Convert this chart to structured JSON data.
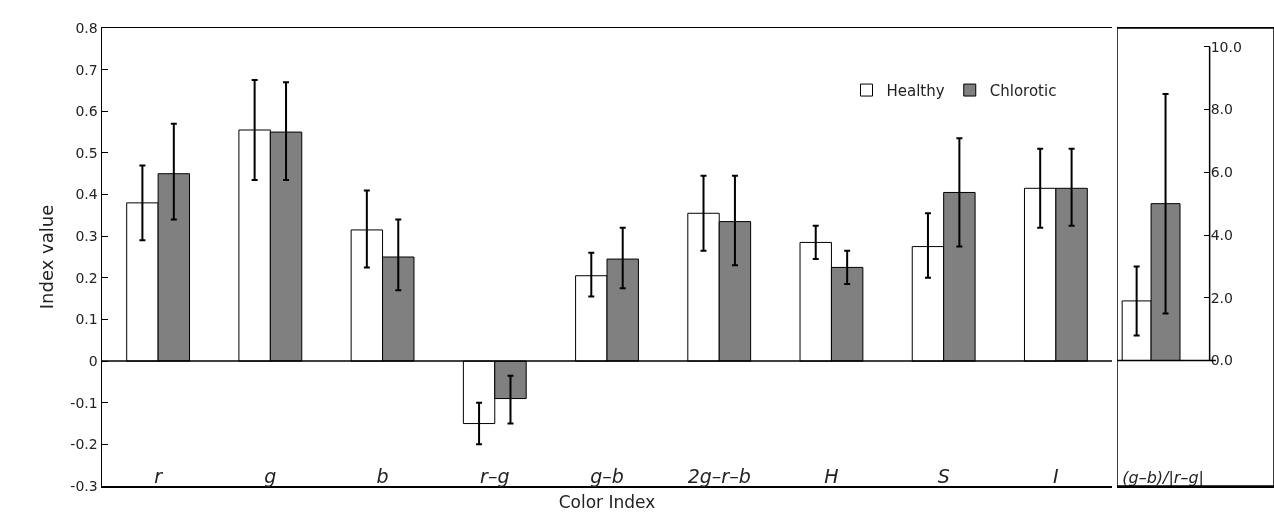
{
  "chart_data": [
    {
      "type": "bar",
      "xlabel": "Color Index",
      "ylabel": "Index value",
      "categories": [
        "r",
        "g",
        "b",
        "r–g",
        "g–b",
        "2g–r–b",
        "H",
        "S",
        "I"
      ],
      "series": [
        {
          "name": "Healthy",
          "color": "#ffffff",
          "values": [
            0.38,
            0.555,
            0.315,
            -0.15,
            0.205,
            0.355,
            0.285,
            0.275,
            0.415
          ],
          "errors": [
            [
              0.29,
              0.47
            ],
            [
              0.435,
              0.675
            ],
            [
              0.225,
              0.41
            ],
            [
              -0.2,
              -0.1
            ],
            [
              0.155,
              0.26
            ],
            [
              0.265,
              0.445
            ],
            [
              0.245,
              0.325
            ],
            [
              0.2,
              0.355
            ],
            [
              0.32,
              0.51
            ]
          ]
        },
        {
          "name": "Chlorotic",
          "color": "#808080",
          "values": [
            0.45,
            0.55,
            0.25,
            -0.09,
            0.245,
            0.335,
            0.225,
            0.405,
            0.415
          ],
          "errors": [
            [
              0.34,
              0.57
            ],
            [
              0.435,
              0.67
            ],
            [
              0.17,
              0.34
            ],
            [
              -0.15,
              -0.035
            ],
            [
              0.175,
              0.32
            ],
            [
              0.23,
              0.445
            ],
            [
              0.185,
              0.265
            ],
            [
              0.275,
              0.535
            ],
            [
              0.325,
              0.51
            ]
          ]
        }
      ],
      "ylim": [
        -0.3,
        0.8
      ],
      "yticks": [
        -0.3,
        -0.2,
        -0.1,
        0,
        0.1,
        0.2,
        0.3,
        0.4,
        0.5,
        0.6,
        0.7,
        0.8
      ],
      "grid": false,
      "legend": "top right",
      "ref_lines": [
        {
          "axis": "y",
          "value": 0,
          "color": "#000000"
        }
      ]
    },
    {
      "type": "bar",
      "categories": [
        "(g–b)/|r–g|"
      ],
      "series": [
        {
          "color": "#ffffff",
          "values": [
            1.9
          ],
          "errors": [
            [
              0.8,
              3.0
            ]
          ]
        },
        {
          "color": "#808080",
          "values": [
            5.0
          ],
          "errors": [
            [
              1.5,
              8.5
            ]
          ]
        }
      ],
      "ylim": [
        -4.0,
        10.6
      ],
      "yticks": [
        {
          "value": 0,
          "label": "0.0"
        },
        {
          "value": 2,
          "label": "2.0"
        },
        {
          "value": 4,
          "label": "4.0"
        },
        {
          "value": 6,
          "label": "6.0"
        },
        {
          "value": 8,
          "label": "8.0"
        },
        {
          "value": 10,
          "label": "10.0"
        }
      ],
      "grid": false,
      "ref_lines": [
        {
          "axis": "y",
          "value": 0,
          "color": "#000000"
        }
      ]
    }
  ]
}
